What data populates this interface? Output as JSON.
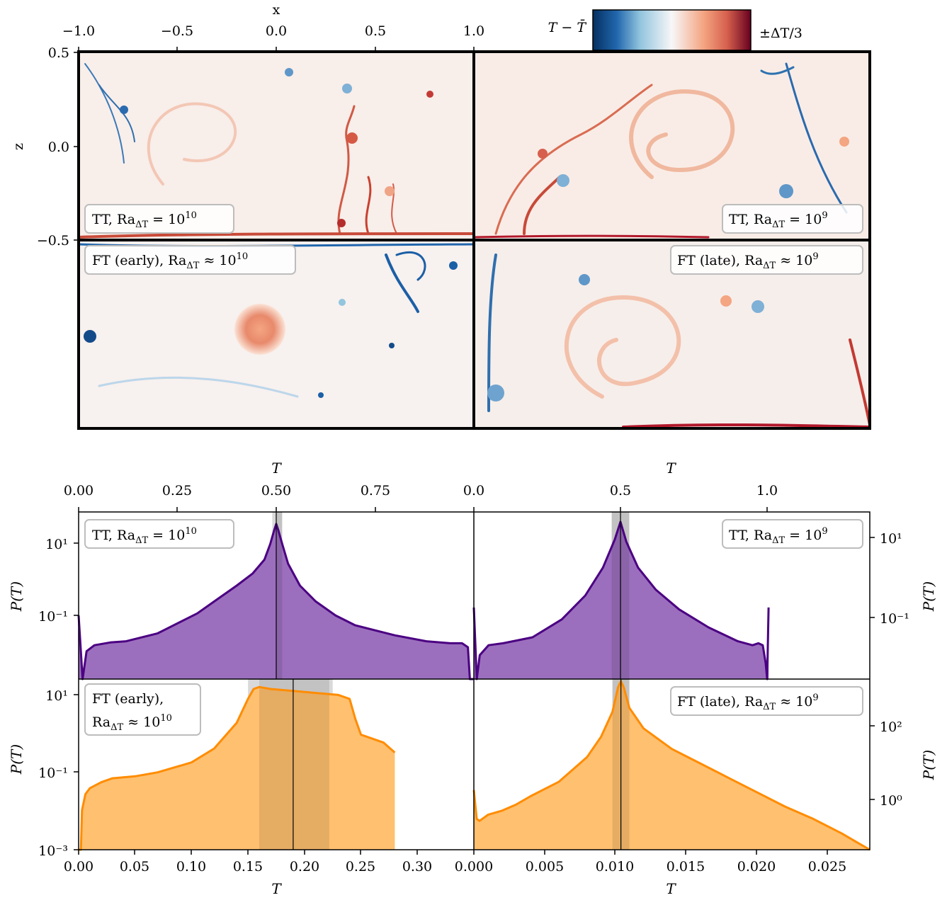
{
  "colors": {
    "tt_line": "#4b0082",
    "tt_fill": "#9b6fbd",
    "ft_line": "#ff8c00",
    "ft_fill": "#ffc070",
    "band": "#d9d9d9",
    "cold": "#1b5fa6",
    "hot": "#b2182b"
  },
  "colorbar": {
    "left_label": "T − T̄",
    "right_label": "±ΔT/3"
  },
  "field": {
    "xlabel": "x",
    "zlabel": "z",
    "xticks": [
      "−1.0",
      "−0.5",
      "0.0",
      "0.5",
      "1.0"
    ],
    "zticks": [
      "0.5",
      "0.0",
      "−0.5"
    ],
    "panels": [
      {
        "label": "TT, Ra",
        "sub": "ΔT",
        "rest": " = 10",
        "sup": "10"
      },
      {
        "label": "TT, Ra",
        "sub": "ΔT",
        "rest": " = 10",
        "sup": "9"
      },
      {
        "label": "FT (early), Ra",
        "sub": "ΔT",
        "rest": " ≈ 10",
        "sup": "10"
      },
      {
        "label": "FT (late), Ra",
        "sub": "ΔT",
        "rest": " ≈ 10",
        "sup": "9"
      }
    ]
  },
  "chart_data": [
    {
      "type": "area",
      "panel": "top-left",
      "label": "TT, Ra_ΔT = 10^10",
      "xlabel": "T",
      "ylabel": "P(T)",
      "x_ticks": [
        "0.00",
        "0.25",
        "0.50",
        "0.75"
      ],
      "y_ticks": [
        "10¹",
        "10⁻¹"
      ],
      "xlim": [
        0,
        1.0
      ],
      "log_y": true,
      "ylim_log10": [
        -2.7,
        1.5
      ],
      "mean": 0.5,
      "band": [
        0.49,
        0.515
      ],
      "dark_band": [
        0.5,
        0.515
      ],
      "x": [
        0.0,
        0.01,
        0.02,
        0.04,
        0.08,
        0.12,
        0.2,
        0.3,
        0.35,
        0.4,
        0.44,
        0.47,
        0.485,
        0.495,
        0.5,
        0.505,
        0.515,
        0.53,
        0.56,
        0.6,
        0.65,
        0.7,
        0.8,
        0.88,
        0.94,
        0.97,
        0.985,
        0.99,
        1.0
      ],
      "y_log10": [
        -1.1,
        -2.7,
        -2.0,
        -1.85,
        -1.78,
        -1.75,
        -1.55,
        -1.05,
        -0.7,
        -0.35,
        -0.05,
        0.3,
        0.7,
        1.05,
        1.2,
        1.05,
        0.7,
        0.2,
        -0.35,
        -0.75,
        -1.1,
        -1.35,
        -1.6,
        -1.75,
        -1.8,
        -1.8,
        -1.9,
        -2.7,
        -2.7
      ]
    },
    {
      "type": "area",
      "panel": "top-right",
      "label": "TT, Ra_ΔT = 10^9",
      "xlabel": "T",
      "ylabel": "P(T)",
      "x_ticks": [
        "0.0",
        "0.5",
        "1.0"
      ],
      "y_ticks": [
        "10¹",
        "10⁻¹"
      ],
      "xlim": [
        0,
        1.35
      ],
      "log_y": true,
      "ylim_log10": [
        -2.7,
        1.5
      ],
      "mean": 0.5,
      "band": [
        0.47,
        0.53
      ],
      "dark_band": [
        0.47,
        0.53
      ],
      "x": [
        0.0,
        0.01,
        0.02,
        0.05,
        0.1,
        0.2,
        0.3,
        0.38,
        0.44,
        0.48,
        0.5,
        0.52,
        0.56,
        0.62,
        0.7,
        0.8,
        0.9,
        0.95,
        0.97,
        0.985,
        0.995,
        1.0,
        1.005
      ],
      "y_log10": [
        -0.9,
        -2.7,
        -2.1,
        -1.85,
        -1.8,
        -1.65,
        -1.2,
        -0.6,
        0.1,
        0.8,
        1.25,
        0.75,
        0.1,
        -0.45,
        -0.95,
        -1.4,
        -1.75,
        -1.85,
        -1.8,
        -1.85,
        -2.3,
        -2.7,
        -0.9
      ]
    },
    {
      "type": "area",
      "panel": "bottom-left",
      "label": "FT (early), Ra_ΔT ≈ 10^10",
      "xlabel": "T",
      "ylabel": "P(T)",
      "x_ticks": [
        "0.00",
        "0.05",
        "0.10",
        "0.15",
        "0.20",
        "0.25",
        "0.30"
      ],
      "y_ticks": [
        "10¹",
        "10⁻¹",
        "10⁻³"
      ],
      "xlim": [
        0,
        0.35
      ],
      "log_y": true,
      "ylim_log10": [
        -3,
        1.3
      ],
      "mean": 0.19,
      "band": [
        0.15,
        0.225
      ],
      "dark_band": [
        0.16,
        0.222
      ],
      "x": [
        0.0,
        0.002,
        0.003,
        0.006,
        0.01,
        0.02,
        0.03,
        0.05,
        0.07,
        0.1,
        0.12,
        0.14,
        0.15,
        0.155,
        0.16,
        0.17,
        0.19,
        0.21,
        0.23,
        0.24,
        0.245,
        0.25,
        0.26,
        0.27,
        0.28,
        0.28
      ],
      "y_log10": [
        -3.0,
        -3.0,
        -2.0,
        -1.6,
        -1.45,
        -1.3,
        -1.2,
        -1.15,
        -1.05,
        -0.8,
        -0.45,
        0.2,
        0.8,
        1.05,
        1.1,
        1.05,
        1.0,
        0.95,
        0.9,
        0.8,
        0.3,
        -0.1,
        -0.2,
        -0.3,
        -0.55,
        -0.55
      ]
    },
    {
      "type": "area",
      "panel": "bottom-right",
      "label": "FT (late), Ra_ΔT ≈ 10^9",
      "xlabel": "T",
      "ylabel": "P(T)",
      "x_ticks": [
        "0.000",
        "0.005",
        "0.010",
        "0.015",
        "0.020",
        "0.025"
      ],
      "y_ticks": [
        "10²",
        "10⁰"
      ],
      "xlim": [
        0,
        0.028
      ],
      "log_y": true,
      "ylim_log10": [
        -0.75,
        3.4
      ],
      "mean": 0.0104,
      "band": [
        0.0098,
        0.011
      ],
      "dark_band": [
        0.0098,
        0.011
      ],
      "x": [
        0.0,
        0.0002,
        0.0004,
        0.001,
        0.002,
        0.003,
        0.004,
        0.006,
        0.008,
        0.009,
        0.0098,
        0.0102,
        0.0104,
        0.0106,
        0.011,
        0.012,
        0.014,
        0.016,
        0.018,
        0.02,
        0.022,
        0.024,
        0.026,
        0.027,
        0.028
      ],
      "y_log10": [
        0.7,
        0.0,
        -0.05,
        0.1,
        0.2,
        0.35,
        0.55,
        0.9,
        1.5,
        2.0,
        2.6,
        3.2,
        3.35,
        3.2,
        2.7,
        2.2,
        1.7,
        1.35,
        1.0,
        0.65,
        0.3,
        0.0,
        -0.35,
        -0.55,
        -0.75
      ]
    }
  ]
}
